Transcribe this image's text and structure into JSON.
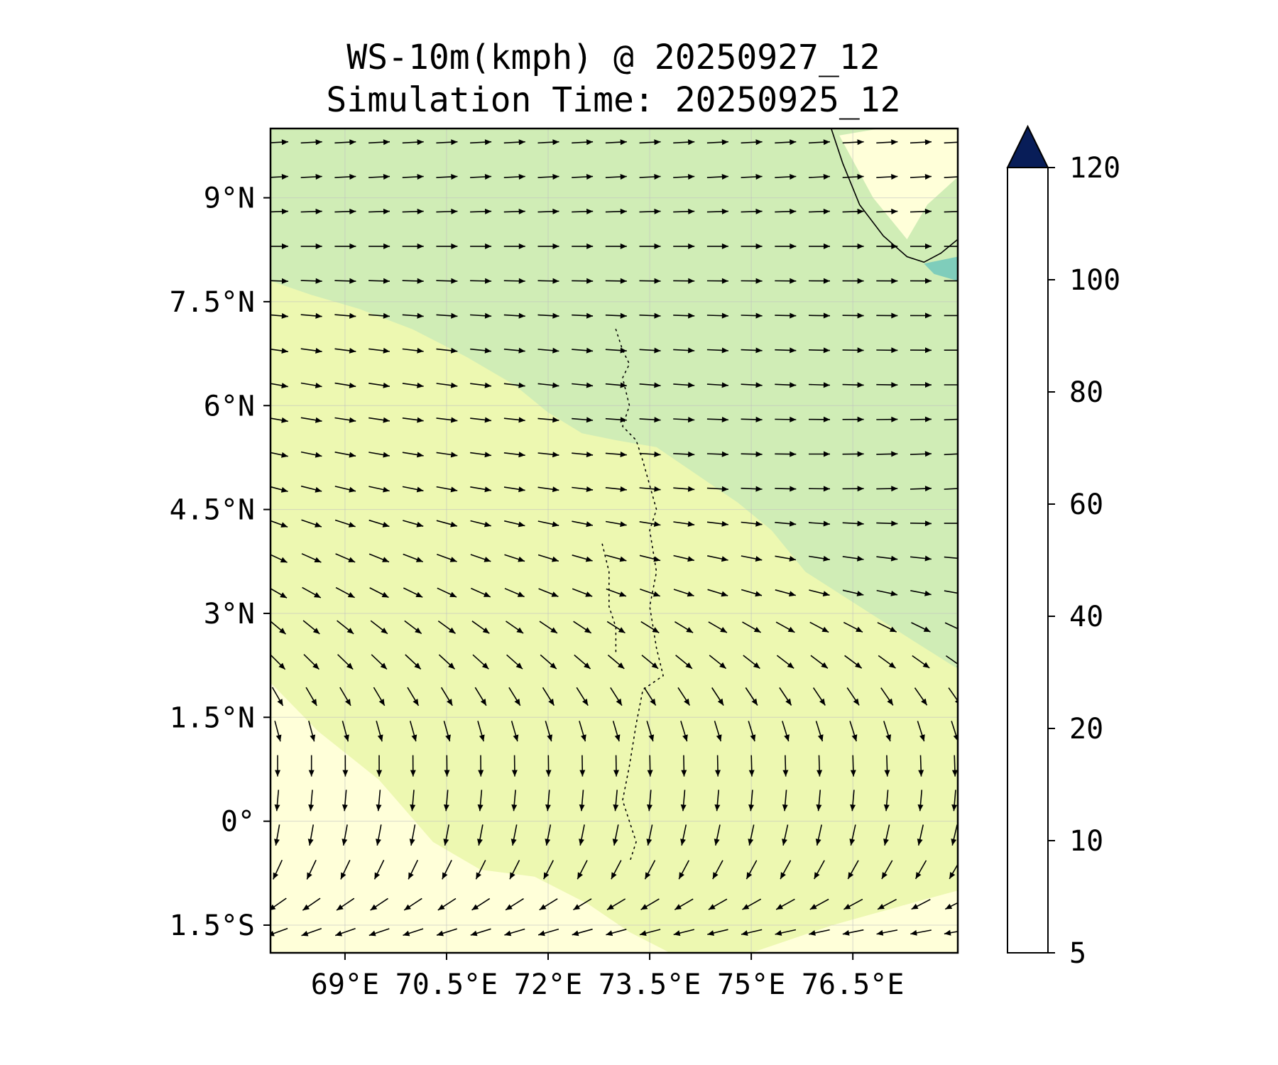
{
  "title": {
    "line1": "WS-10m(kmph) @ 20250927_12",
    "line2": "Simulation Time: 20250925_12"
  },
  "chart_data": {
    "type": "heatmap",
    "title": "WS-10m(kmph) @ 20250927_12",
    "subtitle": "Simulation Time: 20250925_12",
    "xlabel": "",
    "ylabel": "",
    "xlim": [
      67.9,
      78.05
    ],
    "ylim": [
      -1.9,
      10.0
    ],
    "x_ticks": [
      {
        "value": 69.0,
        "label": "69°E"
      },
      {
        "value": 70.5,
        "label": "70.5°E"
      },
      {
        "value": 72.0,
        "label": "72°E"
      },
      {
        "value": 73.5,
        "label": "73.5°E"
      },
      {
        "value": 75.0,
        "label": "75°E"
      },
      {
        "value": 76.5,
        "label": "76.5°E"
      }
    ],
    "y_ticks": [
      {
        "value": -1.5,
        "label": "1.5°S"
      },
      {
        "value": 0.0,
        "label": "0°"
      },
      {
        "value": 1.5,
        "label": "1.5°N"
      },
      {
        "value": 3.0,
        "label": "3°N"
      },
      {
        "value": 4.5,
        "label": "4.5°N"
      },
      {
        "value": 6.0,
        "label": "6°N"
      },
      {
        "value": 7.5,
        "label": "7.5°N"
      },
      {
        "value": 9.0,
        "label": "9°N"
      }
    ],
    "grid": true,
    "colorbar": {
      "position": "right",
      "extend": "max",
      "levels": [
        5,
        10,
        20,
        40,
        60,
        80,
        100,
        120
      ],
      "tick_labels": [
        "5",
        "10",
        "20",
        "40",
        "60",
        "80",
        "100",
        "120"
      ],
      "colors": [
        "#ffffd9",
        "#edf8b1",
        "#d0edb6",
        "#7fcdbb",
        "#2ea3c7",
        "#2664ab",
        "#1e2e83"
      ],
      "extend_color": "#081d58"
    },
    "regions": [
      {
        "level_band": "20-40",
        "color": "#d0edb6",
        "outline": [
          [
            67.9,
            10.0
          ],
          [
            78.05,
            10.0
          ],
          [
            78.05,
            2.2
          ],
          [
            77.4,
            2.6
          ],
          [
            76.6,
            3.1
          ],
          [
            75.8,
            3.6
          ],
          [
            75.3,
            4.2
          ],
          [
            74.8,
            4.6
          ],
          [
            74.2,
            5.0
          ],
          [
            73.6,
            5.4
          ],
          [
            73.0,
            5.5
          ],
          [
            72.5,
            5.6
          ],
          [
            72.0,
            5.9
          ],
          [
            71.5,
            6.3
          ],
          [
            70.8,
            6.7
          ],
          [
            70.0,
            7.1
          ],
          [
            69.2,
            7.4
          ],
          [
            68.5,
            7.6
          ],
          [
            67.9,
            7.8
          ]
        ]
      },
      {
        "level_band": "5-10",
        "color": "#ffffd9",
        "outline": [
          [
            67.9,
            2.0
          ],
          [
            68.6,
            1.3
          ],
          [
            69.5,
            0.6
          ],
          [
            70.3,
            -0.3
          ],
          [
            71.0,
            -0.7
          ],
          [
            71.8,
            -0.8
          ],
          [
            72.6,
            -1.2
          ],
          [
            73.2,
            -1.6
          ],
          [
            73.8,
            -1.9
          ],
          [
            67.9,
            -1.9
          ]
        ]
      },
      {
        "level_band": "5-10",
        "color": "#ffffd9",
        "outline": [
          [
            75.0,
            -1.9
          ],
          [
            76.2,
            -1.5
          ],
          [
            77.3,
            -1.2
          ],
          [
            78.05,
            -1.0
          ],
          [
            78.05,
            -1.9
          ]
        ]
      },
      {
        "level_band": "5-10",
        "color": "#ffffd9",
        "outline": [
          [
            76.3,
            9.9
          ],
          [
            76.9,
            10.0
          ],
          [
            78.05,
            10.0
          ],
          [
            78.05,
            9.3
          ],
          [
            77.6,
            8.9
          ],
          [
            77.3,
            8.4
          ],
          [
            76.8,
            9.0
          ]
        ]
      },
      {
        "level_band": "40-60",
        "color": "#7fcdbb",
        "outline": [
          [
            77.55,
            8.05
          ],
          [
            78.05,
            8.15
          ],
          [
            78.05,
            7.8
          ],
          [
            77.7,
            7.9
          ]
        ]
      }
    ],
    "coastline": [
      [
        76.18,
        10.0
      ],
      [
        76.35,
        9.5
      ],
      [
        76.6,
        8.9
      ],
      [
        76.95,
        8.45
      ],
      [
        77.3,
        8.15
      ],
      [
        77.55,
        8.07
      ],
      [
        77.8,
        8.2
      ],
      [
        78.05,
        8.4
      ]
    ],
    "islands": [
      {
        "name": "",
        "points": [
          [
            73.0,
            7.1
          ],
          [
            73.1,
            6.8
          ],
          [
            73.2,
            6.6
          ],
          [
            73.1,
            6.4
          ],
          [
            73.2,
            6.0
          ],
          [
            73.1,
            5.7
          ],
          [
            73.3,
            5.5
          ],
          [
            73.4,
            5.2
          ],
          [
            73.6,
            4.5
          ],
          [
            73.5,
            4.2
          ],
          [
            73.6,
            3.6
          ],
          [
            73.5,
            3.1
          ],
          [
            73.6,
            2.5
          ],
          [
            73.7,
            2.1
          ],
          [
            73.4,
            1.9
          ],
          [
            73.3,
            1.4
          ],
          [
            73.2,
            0.8
          ],
          [
            73.1,
            0.3
          ],
          [
            73.3,
            -0.3
          ],
          [
            73.2,
            -0.6
          ]
        ]
      },
      {
        "name": "",
        "points": [
          [
            72.8,
            4.0
          ],
          [
            72.9,
            3.6
          ],
          [
            72.9,
            3.1
          ],
          [
            73.0,
            2.8
          ],
          [
            73.0,
            2.4
          ]
        ]
      }
    ],
    "wind_vectors": {
      "grid_x": [
        67.9,
        68.4,
        68.9,
        69.4,
        69.9,
        70.4,
        70.9,
        71.4,
        71.9,
        72.4,
        72.9,
        73.4,
        73.9,
        74.4,
        74.9,
        75.4,
        75.9,
        76.4,
        76.9,
        77.4,
        77.9
      ],
      "grid_y": [
        9.8,
        9.3,
        8.8,
        8.3,
        7.8,
        7.3,
        6.8,
        6.3,
        5.8,
        5.3,
        4.8,
        4.3,
        3.8,
        3.3,
        2.8,
        2.3,
        1.8,
        1.3,
        0.8,
        0.3,
        -0.2,
        -0.7,
        -1.2,
        -1.6
      ],
      "row_direction_deg": [
        -3,
        -3,
        -2,
        0,
        2,
        5,
        8,
        10,
        10,
        12,
        15,
        20,
        25,
        30,
        40,
        45,
        60,
        75,
        90,
        95,
        100,
        115,
        145,
        160
      ],
      "east_tilt_deg": [
        0,
        0,
        0,
        0,
        2,
        5,
        8,
        10,
        12,
        15,
        18,
        20,
        20,
        20,
        15,
        10,
        5,
        3,
        2,
        0,
        -3,
        -5,
        -8,
        -10
      ]
    }
  }
}
